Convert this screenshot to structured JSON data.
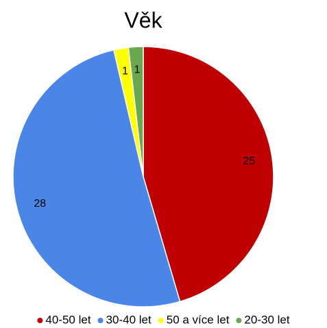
{
  "chart_data": {
    "type": "pie",
    "title": "Věk",
    "categories": [
      "40-50 let",
      "30-40 let",
      "50 a více let",
      "20-30 let"
    ],
    "values": [
      25,
      28,
      1,
      1
    ],
    "colors": [
      "#c00000",
      "#4a86e8",
      "#ffff00",
      "#6aa84f"
    ],
    "legend": "bottom",
    "data_labels": true
  }
}
